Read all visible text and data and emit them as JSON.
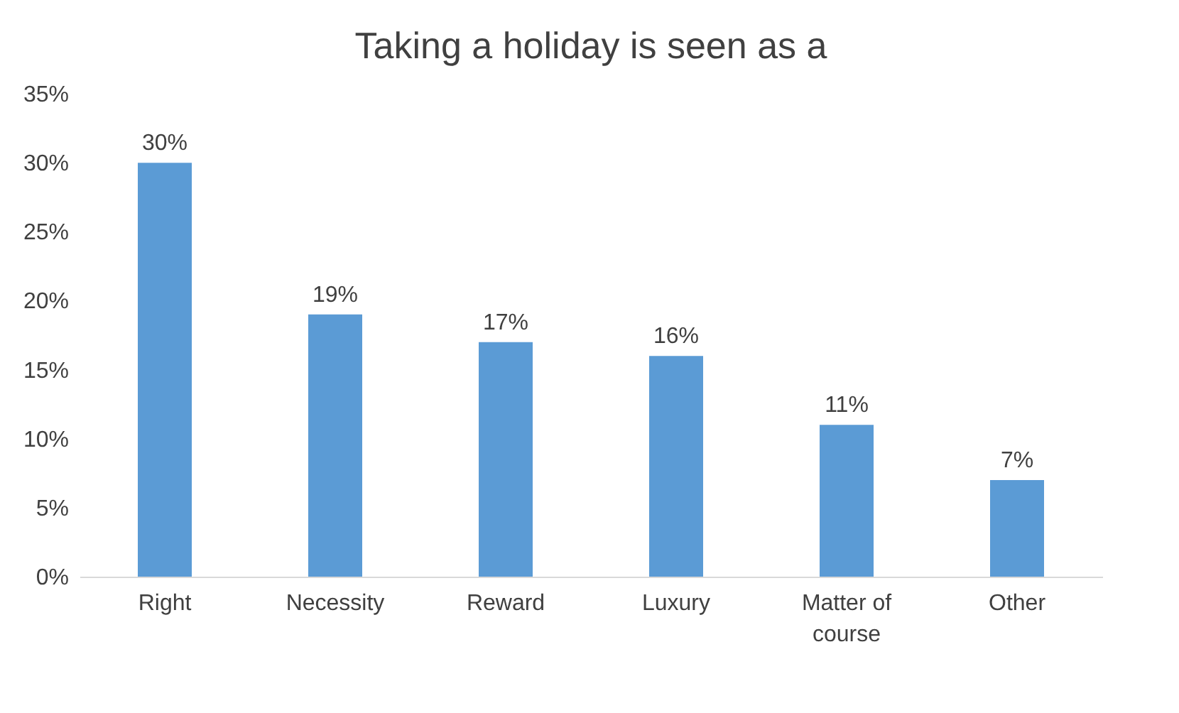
{
  "chart_data": {
    "type": "bar",
    "title": "Taking a holiday is seen as a",
    "categories": [
      "Right",
      "Necessity",
      "Reward",
      "Luxury",
      "Matter of course",
      "Other"
    ],
    "values": [
      30,
      19,
      17,
      16,
      11,
      7
    ],
    "value_labels": [
      "30%",
      "19%",
      "17%",
      "16%",
      "11%",
      "7%"
    ],
    "color": "#5b9bd5",
    "ylim": [
      0,
      35
    ],
    "yticks": [
      {
        "value": 0,
        "label": "0%"
      },
      {
        "value": 5,
        "label": "5%"
      },
      {
        "value": 10,
        "label": "10%"
      },
      {
        "value": 15,
        "label": "15%"
      },
      {
        "value": 20,
        "label": "20%"
      },
      {
        "value": 25,
        "label": "25%"
      },
      {
        "value": 30,
        "label": "30%"
      },
      {
        "value": 35,
        "label": "35%"
      }
    ],
    "grid": false
  }
}
